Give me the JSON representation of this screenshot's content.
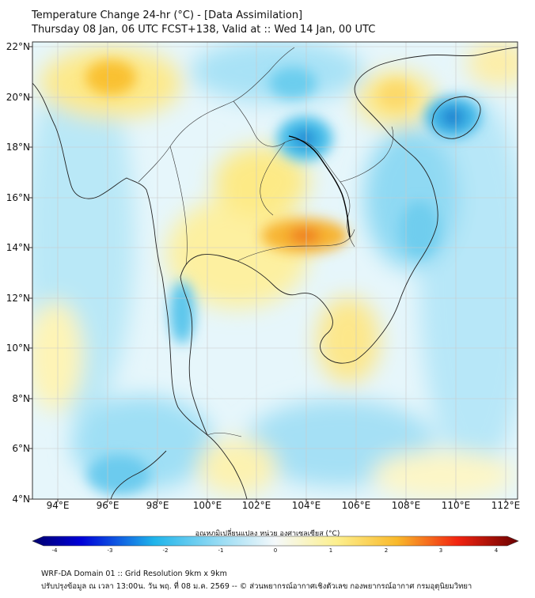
{
  "header": {
    "title_line1": "Temperature Change 24-hr (°C) - [Data Assimilation]",
    "title_line2": "Thursday 08 Jan, 06 UTC FCST+138, Valid at :: Wed 14 Jan, 00 UTC"
  },
  "map": {
    "lat_labels": [
      "22°N",
      "20°N",
      "18°N",
      "16°N",
      "14°N",
      "12°N",
      "10°N",
      "8°N",
      "6°N",
      "4°N"
    ],
    "lon_labels": [
      "94°E",
      "96°E",
      "98°E",
      "100°E",
      "102°E",
      "104°E",
      "106°E",
      "108°E",
      "110°E",
      "112°E"
    ],
    "extent": {
      "lon_min": 93.0,
      "lon_max": 112.5,
      "lat_min": 4.0,
      "lat_max": 22.1
    },
    "anomalies": [
      {
        "lon": 95.8,
        "lat": 20.8,
        "value": 1.6,
        "note": "warm"
      },
      {
        "lon": 103.9,
        "lat": 14.4,
        "value": 2.1,
        "note": "warm"
      },
      {
        "lon": 103.6,
        "lat": 18.4,
        "value": -1.6,
        "note": "cold"
      },
      {
        "lon": 110.0,
        "lat": 19.2,
        "value": -1.8,
        "note": "cold"
      },
      {
        "lon": 107.2,
        "lat": 20.3,
        "value": 0.9,
        "note": "warm"
      },
      {
        "lon": 98.5,
        "lat": 11.2,
        "value": -1.2,
        "note": "cold"
      }
    ]
  },
  "colorbar": {
    "title": "อุณหภูมิเปลี่ยนแปลง หน่วย องศาเซลเซียส (°C)",
    "min": -4,
    "max": 4,
    "ticks": [
      "-4",
      "-3",
      "-2",
      "-1",
      "0",
      "1",
      "2",
      "3",
      "4"
    ]
  },
  "footer": {
    "line1": "WRF-DA Domain 01 :: Grid Resolution 9km x 9km",
    "line2": "ปรับปรุงข้อมูล ณ เวลา 13:00น. วัน พฤ. ที่ 08 ม.ค. 2569 -- © ส่วนพยากรณ์อากาศเชิงตัวเลข กองพยากรณ์อากาศ กรมอุตุนิยมวิทยา"
  }
}
